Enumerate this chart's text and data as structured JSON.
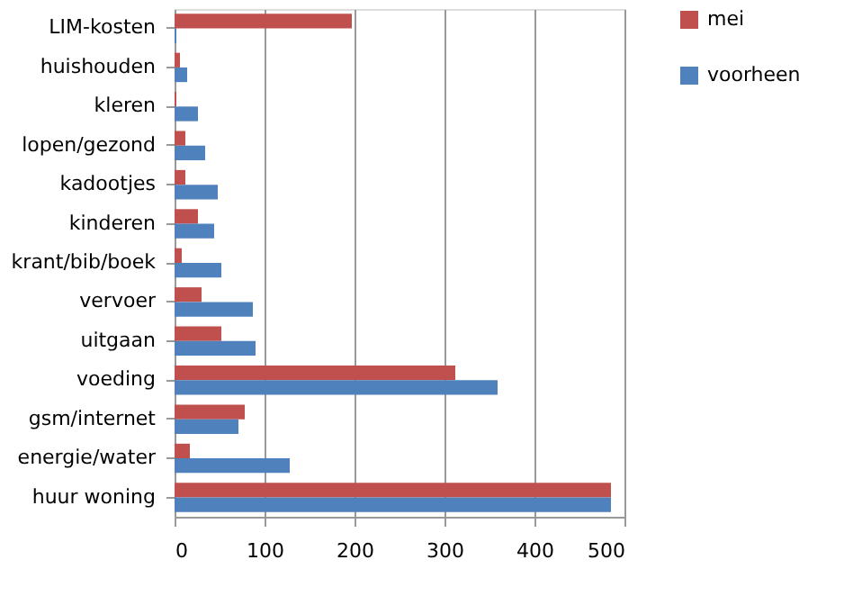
{
  "chart_data": {
    "type": "bar",
    "orientation": "horizontal",
    "categories": [
      "LIM-kosten",
      "huishouden",
      "kleren",
      "lopen/gezond",
      "kadootjes",
      "kinderen",
      "krant/bib/boek",
      "vervoer",
      "uitgaan",
      "voeding",
      "gsm/internet",
      "energie/water",
      "huur woning"
    ],
    "series": [
      {
        "name": "mei",
        "color": "#c0504d",
        "values": [
          197,
          6,
          2,
          12,
          12,
          26,
          8,
          30,
          52,
          312,
          78,
          17,
          485
        ]
      },
      {
        "name": "voorheen",
        "color": "#4f81bd",
        "values": [
          2,
          14,
          26,
          34,
          48,
          44,
          52,
          87,
          90,
          359,
          71,
          128,
          485
        ]
      }
    ],
    "xlim": [
      0,
      500
    ],
    "xticks": [
      0,
      100,
      200,
      300,
      400,
      500
    ],
    "grid": "x",
    "legend": "right"
  }
}
